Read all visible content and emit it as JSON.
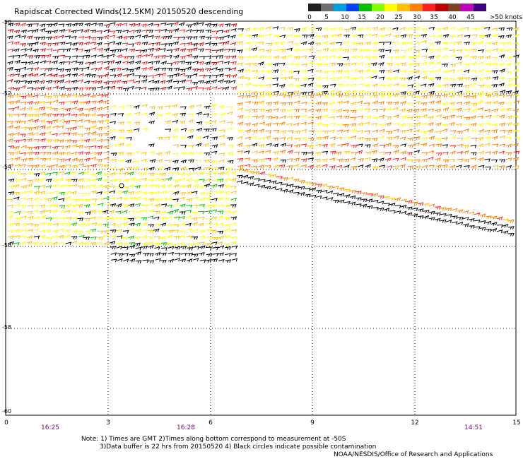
{
  "title": "Rapidscat Corrected Winds(12.5KM) 20150520 descending",
  "scale": {
    "colors": [
      "#202020",
      "#707070",
      "#00a0e0",
      "#0040ff",
      "#00c000",
      "#80ff00",
      "#ffff00",
      "#ffc000",
      "#ff8000",
      "#ff2020",
      "#c00000",
      "#804020",
      "#c000c0",
      "#400080"
    ],
    "labels": [
      "0",
      "5",
      "10",
      "15",
      "20",
      "25",
      "30",
      "35",
      "40",
      "45",
      ">50 knots"
    ]
  },
  "y_ticks": [
    "-50",
    "-52",
    "-54",
    "-56",
    "-58",
    "-60"
  ],
  "x_ticks": [
    "0",
    "3",
    "6",
    "9",
    "12",
    "15"
  ],
  "times": [
    "16:25",
    "16:28",
    "14:51"
  ],
  "notes": {
    "line1": "Note: 1) Times are GMT 2)Times along bottom correspond to measurement at -50S",
    "line2": "3)Data buffer is 22 hrs from 20150520 4) Black circles indicate possible contamination",
    "line3": "NOAA/NESDIS/Office of Research and Applications"
  }
}
